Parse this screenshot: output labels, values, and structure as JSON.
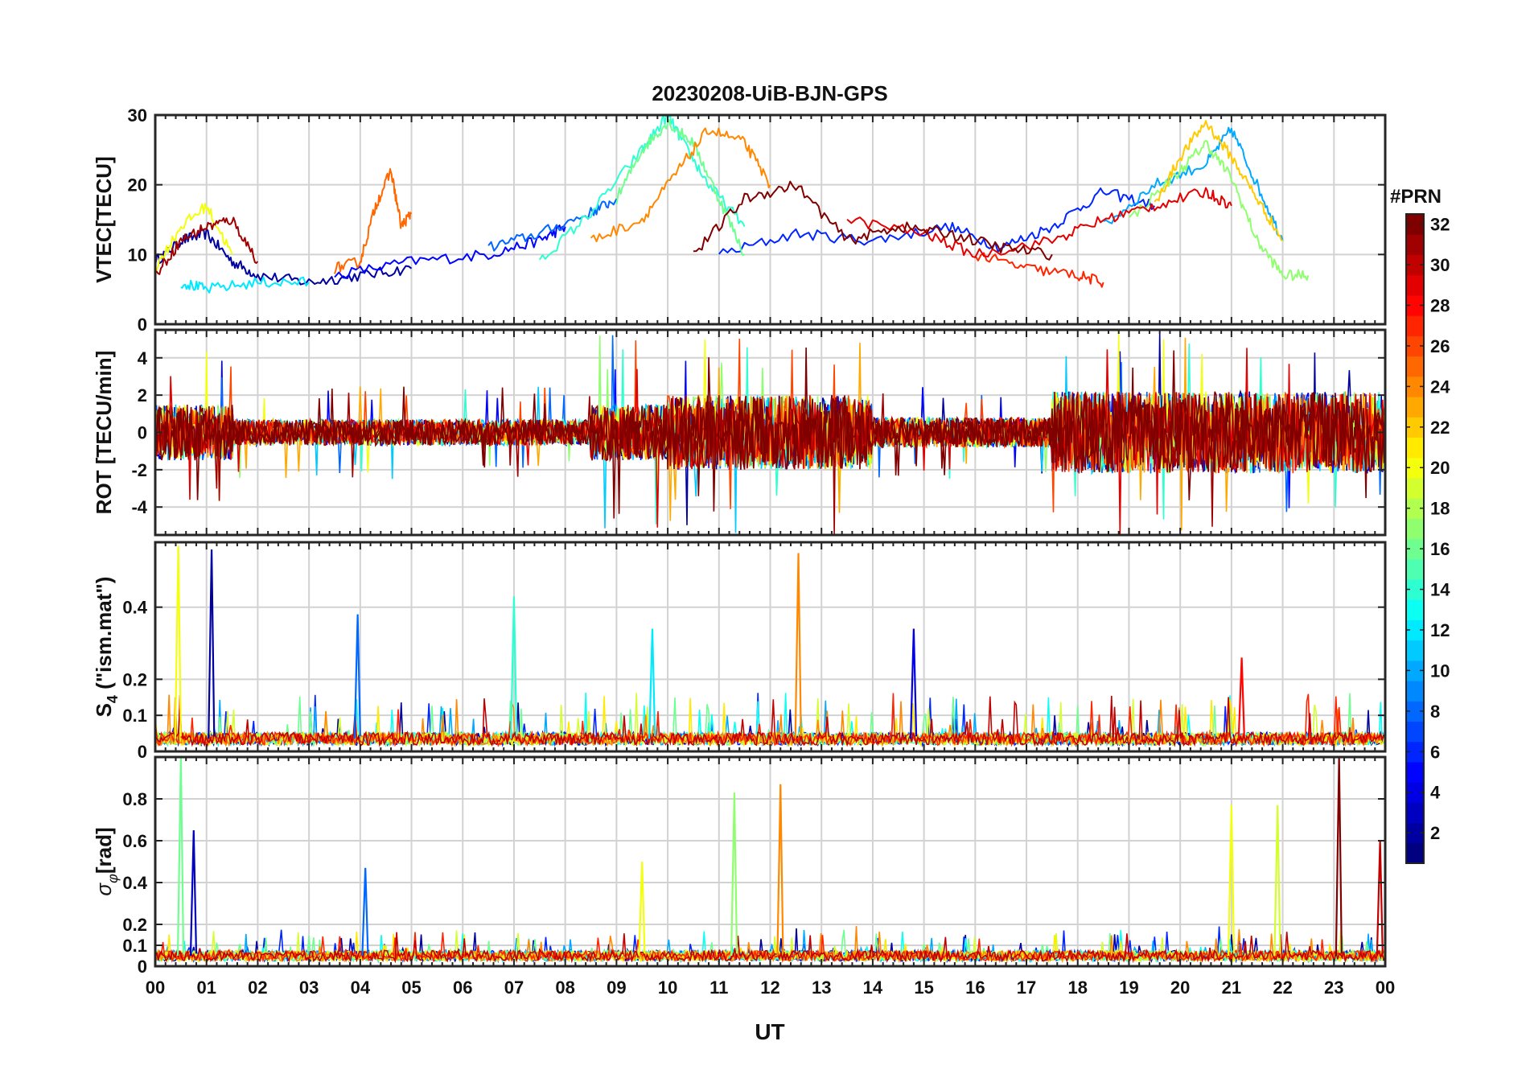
{
  "title": "20230208-UiB-BJN-GPS",
  "xlabel": "UT",
  "x_ticks": [
    "00",
    "01",
    "02",
    "03",
    "04",
    "05",
    "06",
    "07",
    "08",
    "09",
    "10",
    "11",
    "12",
    "13",
    "14",
    "15",
    "16",
    "17",
    "18",
    "19",
    "20",
    "21",
    "22",
    "23",
    "00"
  ],
  "colorbar": {
    "label": "#PRN",
    "ticks": [
      2,
      4,
      6,
      8,
      10,
      12,
      14,
      16,
      18,
      20,
      22,
      24,
      26,
      28,
      30,
      32
    ],
    "range": [
      1,
      32
    ],
    "colormap": "jet",
    "colors": [
      "#00008f",
      "#0000ff",
      "#0080ff",
      "#00ffff",
      "#80ff80",
      "#ffff00",
      "#ff8000",
      "#ff0000",
      "#800000"
    ]
  },
  "chart_data": [
    {
      "type": "line",
      "id": "vtec",
      "ylabel": "VTEC[TECU]",
      "ylim": [
        0,
        30
      ],
      "yticks": [
        0,
        10,
        20,
        30
      ],
      "yticks_labels": [
        "0",
        "10",
        "20",
        "30"
      ],
      "xlim": [
        0,
        24
      ],
      "grid": true,
      "series_note": "one line per GPS PRN, colored by PRN number",
      "series": [
        {
          "name": "PRN 2",
          "prn": 2,
          "x": [
            0.0,
            0.5,
            1.0,
            1.5,
            2.0,
            3.0,
            4.0,
            5.0
          ],
          "values": [
            9,
            12,
            13,
            9,
            7,
            6,
            7,
            8
          ]
        },
        {
          "name": "PRN 5",
          "prn": 5,
          "x": [
            3.5,
            5.0,
            6.5,
            7.5,
            8.0
          ],
          "values": [
            7,
            9,
            10,
            12,
            14
          ]
        },
        {
          "name": "PRN 6",
          "prn": 6,
          "x": [
            11.0,
            12.5,
            14.0,
            15.5,
            16.5,
            17.5,
            18.5,
            19.5
          ],
          "values": [
            10,
            13,
            12,
            14,
            11,
            14,
            19,
            17
          ]
        },
        {
          "name": "PRN 8",
          "prn": 8,
          "x": [
            6.5,
            7.5,
            8.5,
            9.0
          ],
          "values": [
            11,
            13,
            16,
            18
          ]
        },
        {
          "name": "PRN 10",
          "prn": 10,
          "x": [
            18.5,
            19.5,
            20.5,
            21.0,
            21.5,
            22.0
          ],
          "values": [
            14,
            20,
            23,
            28,
            20,
            12
          ]
        },
        {
          "name": "PRN 12",
          "prn": 12,
          "x": [
            0.5,
            1.0,
            2.0,
            3.0
          ],
          "values": [
            6,
            5,
            6,
            6
          ]
        },
        {
          "name": "PRN 14",
          "prn": 14,
          "x": [
            7.5,
            8.5,
            9.5,
            10.0,
            10.3,
            10.8,
            11.5
          ],
          "values": [
            9,
            16,
            25,
            30,
            26,
            20,
            14
          ]
        },
        {
          "name": "PRN 16",
          "prn": 16,
          "x": [
            9.0,
            9.5,
            10.0,
            10.5,
            11.0,
            11.5
          ],
          "values": [
            18,
            25,
            29,
            26,
            18,
            10
          ]
        },
        {
          "name": "PRN 17",
          "prn": 17,
          "x": [
            19.0,
            20.0,
            20.5,
            21.0,
            21.5,
            22.0,
            22.5
          ],
          "values": [
            15,
            22,
            26,
            21,
            12,
            7,
            7
          ]
        },
        {
          "name": "PRN 20",
          "prn": 20,
          "x": [
            0.0,
            0.5,
            1.0,
            1.5
          ],
          "values": [
            8,
            14,
            17,
            10
          ]
        },
        {
          "name": "PRN 22",
          "prn": 22,
          "x": [
            19.5,
            20.0,
            20.5,
            21.0,
            21.5,
            22.0
          ],
          "values": [
            17,
            24,
            29,
            24,
            18,
            12
          ]
        },
        {
          "name": "PRN 24",
          "prn": 24,
          "x": [
            8.5,
            9.5,
            10.2,
            10.8,
            11.5,
            12.0
          ],
          "values": [
            12,
            15,
            22,
            28,
            26,
            20
          ]
        },
        {
          "name": "PRN 25",
          "prn": 25,
          "x": [
            3.5,
            4.0,
            4.3,
            4.6,
            4.8,
            5.0
          ],
          "values": [
            8,
            9,
            17,
            22,
            14,
            16
          ]
        },
        {
          "name": "PRN 27",
          "prn": 27,
          "x": [
            16.0,
            17.0,
            18.0,
            18.5
          ],
          "values": [
            10,
            8,
            7,
            6
          ]
        },
        {
          "name": "PRN 29",
          "prn": 29,
          "x": [
            13.5,
            15.0,
            16.0,
            17.5,
            18.5,
            19.5,
            20.5,
            21.0
          ],
          "values": [
            15,
            13,
            10,
            12,
            15,
            17,
            19,
            17
          ]
        },
        {
          "name": "PRN 31",
          "prn": 31,
          "x": [
            0.0,
            0.5,
            1.0,
            1.5,
            2.0
          ],
          "values": [
            7,
            12,
            14,
            15,
            9
          ]
        },
        {
          "name": "PRN 32",
          "prn": 32,
          "x": [
            10.5,
            11.5,
            12.5,
            13.5,
            14.5,
            15.5,
            16.5,
            17.5
          ],
          "values": [
            10,
            18,
            20,
            12,
            14,
            13,
            11,
            10
          ]
        }
      ]
    },
    {
      "type": "line",
      "id": "rot",
      "ylabel": "ROT [TECU/min]",
      "ylim": [
        -5.5,
        5.5
      ],
      "yticks": [
        -4,
        -2,
        0,
        2,
        4
      ],
      "yticks_labels": [
        "-4",
        "-2",
        "0",
        "2",
        "4"
      ],
      "xlim": [
        0,
        24
      ],
      "grid": true,
      "series_note": "rate of TEC per PRN; values mostly within about ±2 TECU/min with spikes to ±5",
      "envelope": [
        {
          "x_range": [
            0,
            1.5
          ],
          "typical_abs": 1.5,
          "max_abs": 4.5
        },
        {
          "x_range": [
            1.5,
            8.5
          ],
          "typical_abs": 0.7,
          "max_abs": 2.5
        },
        {
          "x_range": [
            8.5,
            10
          ],
          "typical_abs": 1.5,
          "max_abs": 5.5
        },
        {
          "x_range": [
            10,
            14
          ],
          "typical_abs": 2.0,
          "max_abs": 5.5
        },
        {
          "x_range": [
            14,
            17.5
          ],
          "typical_abs": 0.8,
          "max_abs": 2.5
        },
        {
          "x_range": [
            17.5,
            24
          ],
          "typical_abs": 2.2,
          "max_abs": 5.5
        }
      ]
    },
    {
      "type": "line",
      "id": "s4",
      "ylabel": "S4 (\"ism.mat\")",
      "ylabel_main": "S",
      "ylabel_sub": "4",
      "ylabel_rest": "(\"ism.mat\")",
      "ylim": [
        0,
        0.58
      ],
      "yticks": [
        0,
        0.1,
        0.2,
        0.4
      ],
      "yticks_labels": [
        "0",
        "0.1",
        "0.2",
        "0.4"
      ],
      "xlim": [
        0,
        24
      ],
      "grid": true,
      "series_note": "amplitude scintillation index per PRN; background about 0.03, spikes up to about 0.55",
      "peaks": [
        {
          "x": 0.45,
          "value": 0.57,
          "prn": 20
        },
        {
          "x": 1.1,
          "value": 0.56,
          "prn": 2
        },
        {
          "x": 3.95,
          "value": 0.38,
          "prn": 8
        },
        {
          "x": 7.0,
          "value": 0.43,
          "prn": 14
        },
        {
          "x": 9.7,
          "value": 0.34,
          "prn": 12
        },
        {
          "x": 12.55,
          "value": 0.55,
          "prn": 24
        },
        {
          "x": 14.8,
          "value": 0.34,
          "prn": 4
        },
        {
          "x": 21.2,
          "value": 0.26,
          "prn": 28
        }
      ]
    },
    {
      "type": "line",
      "id": "sigma_phi",
      "ylabel": "σφ[rad]",
      "ylabel_main": "σ",
      "ylabel_sub": "φ",
      "ylabel_rest": "[rad]",
      "ylim": [
        0,
        1.0
      ],
      "yticks": [
        0,
        0.1,
        0.2,
        0.4,
        0.6,
        0.8
      ],
      "yticks_labels": [
        "0",
        "0.1",
        "0.2",
        "0.4",
        "0.6",
        "0.8"
      ],
      "xlim": [
        0,
        24
      ],
      "grid": true,
      "series_note": "phase scintillation index per PRN; background about 0.05",
      "peaks": [
        {
          "x": 0.5,
          "value": 1.0,
          "prn": 16
        },
        {
          "x": 0.75,
          "value": 0.65,
          "prn": 3
        },
        {
          "x": 4.1,
          "value": 0.47,
          "prn": 8
        },
        {
          "x": 9.5,
          "value": 0.5,
          "prn": 20
        },
        {
          "x": 11.3,
          "value": 0.83,
          "prn": 17
        },
        {
          "x": 12.2,
          "value": 0.87,
          "prn": 24
        },
        {
          "x": 21.0,
          "value": 0.77,
          "prn": 20
        },
        {
          "x": 21.9,
          "value": 0.77,
          "prn": 19
        },
        {
          "x": 23.1,
          "value": 1.0,
          "prn": 32
        },
        {
          "x": 23.9,
          "value": 0.6,
          "prn": 30
        }
      ]
    }
  ]
}
